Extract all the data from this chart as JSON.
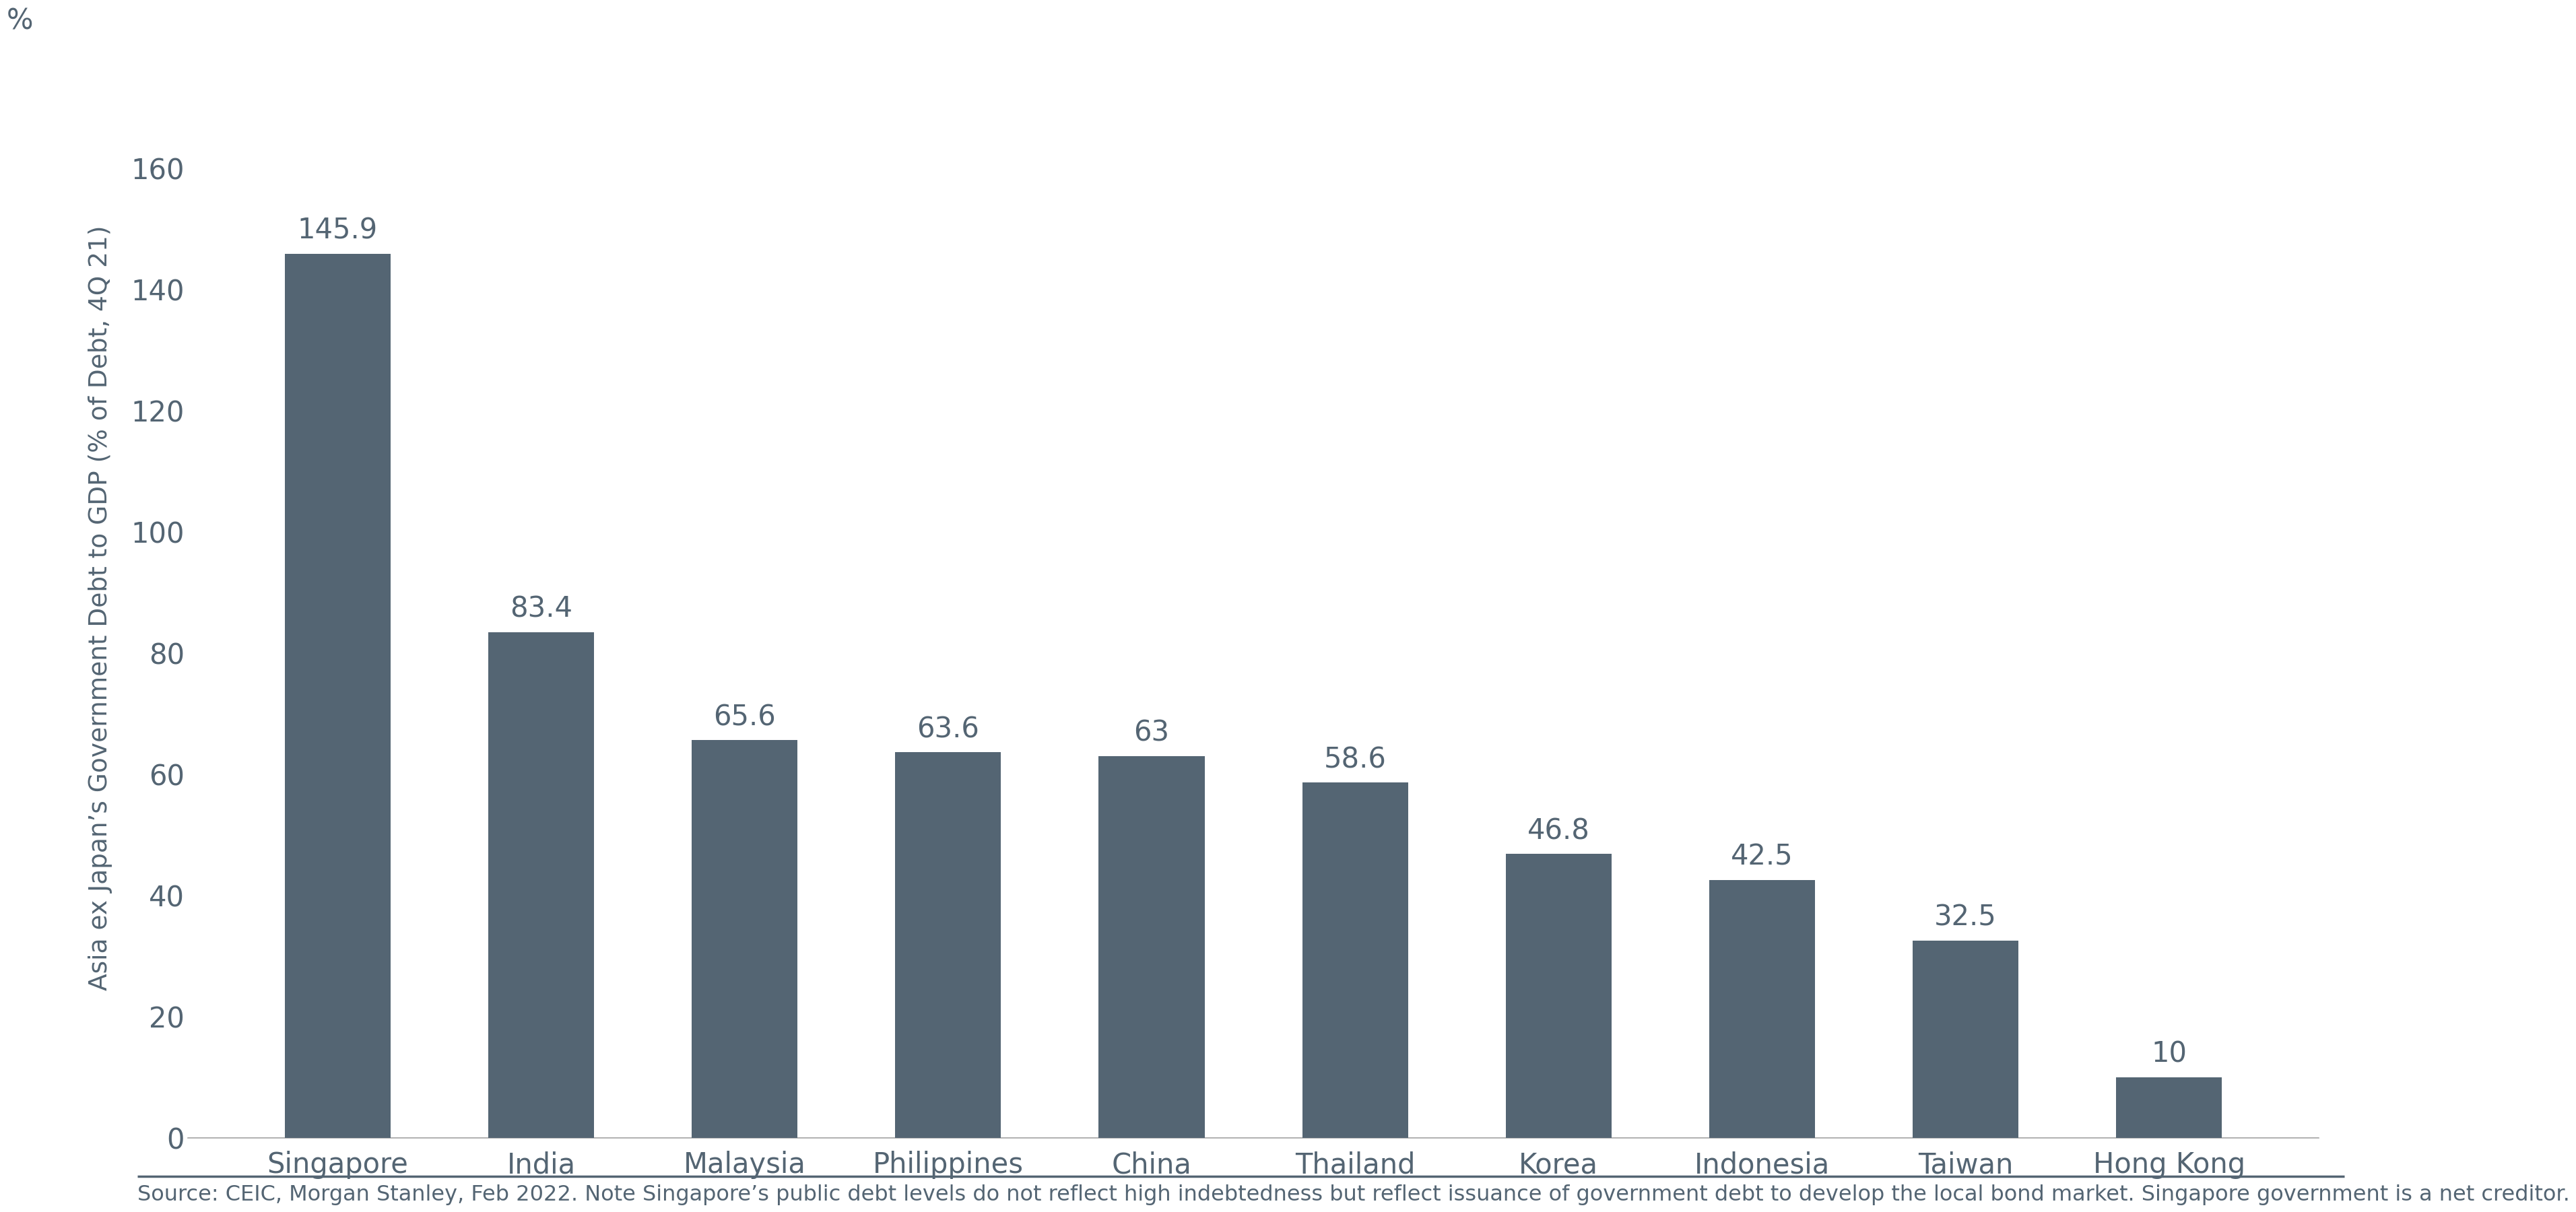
{
  "categories": [
    "Singapore",
    "India",
    "Malaysia",
    "Philippines",
    "China",
    "Thailand",
    "Korea",
    "Indonesia",
    "Taiwan",
    "Hong Kong"
  ],
  "values": [
    145.9,
    83.4,
    65.6,
    63.6,
    63.0,
    58.6,
    46.8,
    42.5,
    32.5,
    10.0
  ],
  "bar_color": "#546573",
  "ylabel": "Asia ex Japan’s Government Debt to GDP (% of Debt, 4Q 21)",
  "ylabel_percent": "%",
  "ylim": [
    0,
    175
  ],
  "yticks": [
    0,
    20,
    40,
    60,
    80,
    100,
    120,
    140,
    160
  ],
  "background_color": "#ffffff",
  "source_text": "Source: CEIC, Morgan Stanley, Feb 2022. Note Singapore’s public debt levels do not reflect high indebtedness but reflect issuance of government debt to develop the local bond market. Singapore government is a net creditor.",
  "label_fontsize": 30,
  "tick_fontsize": 30,
  "ylabel_fontsize": 27,
  "source_fontsize": 23,
  "value_label_fontsize": 30,
  "text_color": "#546573",
  "separator_color": "#546573",
  "axis_color": "#aaaaaa"
}
